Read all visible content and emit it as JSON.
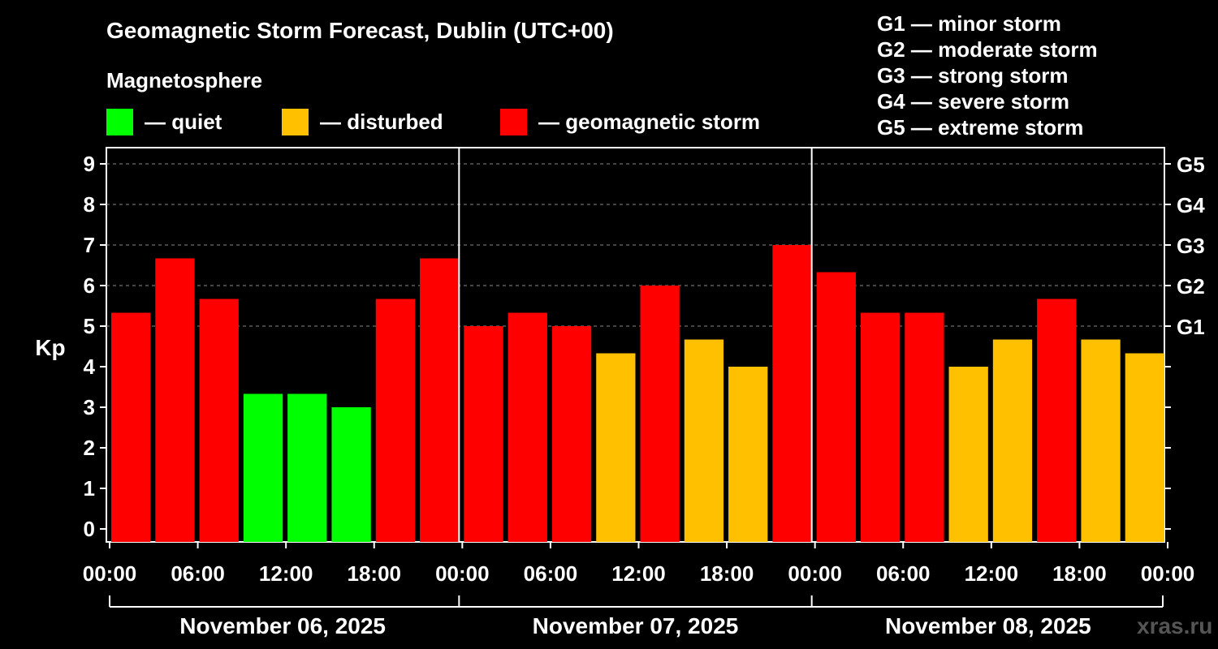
{
  "chart_data": {
    "type": "bar",
    "title": "Geomagnetic Storm Forecast, Dublin (UTC+00)",
    "legend_title": "Magnetosphere",
    "legend": [
      {
        "label": "— quiet",
        "color": "#00ff00"
      },
      {
        "label": "— disturbed",
        "color": "#ffc000"
      },
      {
        "label": "— geomagnetic storm",
        "color": "#ff0000"
      }
    ],
    "storm_levels_legend": [
      "G1 — minor storm",
      "G2 — moderate storm",
      "G3 — strong storm",
      "G4 — severe storm",
      "G5 — extreme storm"
    ],
    "ylabel": "Kp",
    "ylim": [
      0,
      9
    ],
    "yticks": [
      "0",
      "1",
      "2",
      "3",
      "4",
      "5",
      "6",
      "7",
      "8",
      "9"
    ],
    "right_ticks": [
      {
        "label": "G1",
        "kp": 5
      },
      {
        "label": "G2",
        "kp": 6
      },
      {
        "label": "G3",
        "kp": 7
      },
      {
        "label": "G4",
        "kp": 8
      },
      {
        "label": "G5",
        "kp": 9
      }
    ],
    "xtick_labels": [
      "00:00",
      "06:00",
      "12:00",
      "18:00",
      "00:00",
      "06:00",
      "12:00",
      "18:00",
      "00:00",
      "06:00",
      "12:00",
      "18:00",
      "00:00"
    ],
    "days": [
      "November 06, 2025",
      "November 07, 2025",
      "November 08, 2025"
    ],
    "values": [
      5.33,
      6.67,
      5.67,
      3.33,
      3.33,
      3.0,
      5.67,
      6.67,
      5.0,
      5.33,
      5.0,
      4.33,
      6.0,
      4.67,
      4.0,
      7.0,
      6.33,
      5.33,
      5.33,
      4.0,
      4.67,
      5.67,
      4.67,
      4.33
    ],
    "colors": {
      "quiet": "#00ff00",
      "disturbed": "#ffc000",
      "storm": "#ff0000"
    },
    "grid": true
  },
  "watermark": "xras.ru"
}
